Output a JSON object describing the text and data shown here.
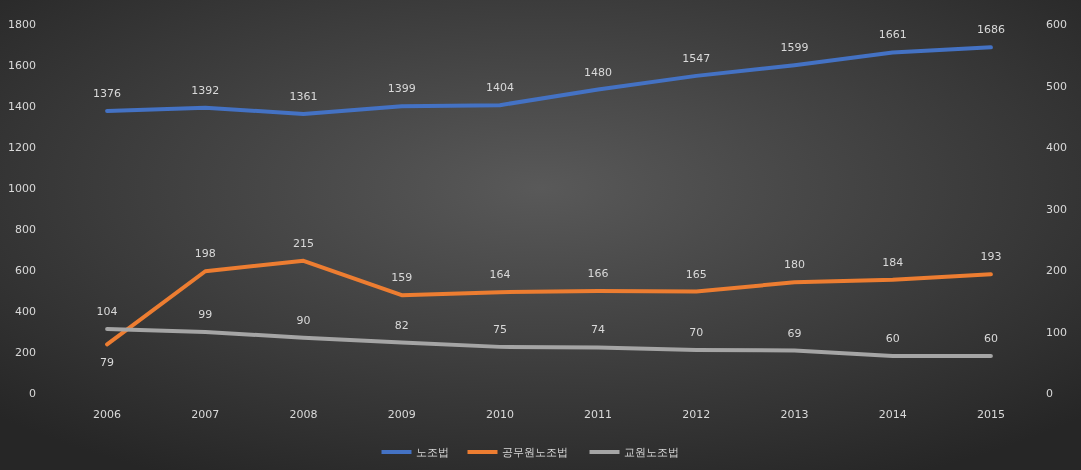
{
  "chart_data": {
    "type": "line",
    "categories": [
      "2006",
      "2007",
      "2008",
      "2009",
      "2010",
      "2011",
      "2012",
      "2013",
      "2014",
      "2015"
    ],
    "series": [
      {
        "name": "노조법",
        "color": "#4472c4",
        "values": [
          1376,
          1392,
          1361,
          1399,
          1404,
          1480,
          1547,
          1599,
          1661,
          1686
        ]
      },
      {
        "name": "공무원노조법",
        "color": "#ed7d31",
        "axis": "y2",
        "values": [
          79,
          198,
          215,
          159,
          164,
          166,
          165,
          180,
          184,
          193
        ]
      },
      {
        "name": "교원노조법",
        "color": "#a5a5a5",
        "axis": "y2",
        "values": [
          104,
          99,
          90,
          82,
          75,
          74,
          70,
          69,
          60,
          60
        ]
      }
    ],
    "ylim": [
      0,
      1800
    ],
    "yticks": [
      0,
      200,
      400,
      600,
      800,
      1000,
      1200,
      1400,
      1600,
      1800
    ],
    "y2lim": [
      0,
      600
    ],
    "y2ticks": [
      0,
      100,
      200,
      300,
      400,
      500,
      600
    ],
    "data_labels": true,
    "legend": "bottom",
    "grid": false,
    "marker": "none",
    "line_style": "solid"
  }
}
